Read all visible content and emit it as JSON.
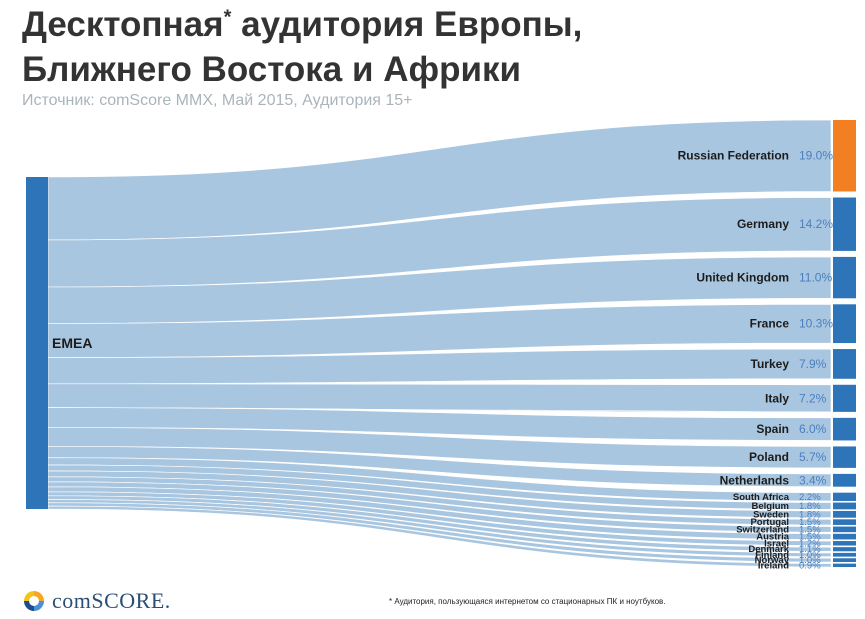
{
  "title_line1_part1": "Десктопная",
  "title_star": "*",
  "title_line1_part2": " аудитория Европы,",
  "title_line2": "Ближнего Востока и Африки",
  "subtitle": "Источник: comScore MMX, Май 2015, Аудитория 15+",
  "footnote": "* Аудитория, пользующаяся интернетом со стационарных ПК и ноутбуков.",
  "brand": "comSCORE.",
  "colors": {
    "flow": "#a9c6e0",
    "node": "#2e74b9",
    "highlight": "#f27f22",
    "percent": "#4a7fbf",
    "label": "#1c1c1c"
  },
  "chart_data": {
    "type": "sankey",
    "source": "EMEA",
    "value_unit": "%",
    "categories": [
      "Russian Federation",
      "Germany",
      "United Kingdom",
      "France",
      "Turkey",
      "Italy",
      "Spain",
      "Poland",
      "Netherlands",
      "South Africa",
      "Belgium",
      "Sweden",
      "Portugal",
      "Switzerland",
      "Austria",
      "Israel",
      "Denmark",
      "Finland",
      "Norway",
      "Ireland"
    ],
    "values": [
      19.0,
      14.2,
      11.0,
      10.3,
      7.9,
      7.2,
      6.0,
      5.7,
      3.4,
      2.2,
      1.8,
      1.8,
      1.5,
      1.5,
      1.5,
      1.2,
      1.1,
      1.0,
      1.0,
      0.9
    ],
    "labels": [
      "19.0%",
      "14.2%",
      "11.0%",
      "10.3%",
      "7.9%",
      "7.2%",
      "6.0%",
      "5.7%",
      "3.4%",
      "2.2%",
      "1.8%",
      "1.8%",
      "1.5%",
      "1.5%",
      "1.5%",
      "1.2%",
      "1.1%",
      "1.0%",
      "1.0%",
      "0.9%"
    ],
    "highlight": "Russian Federation"
  }
}
